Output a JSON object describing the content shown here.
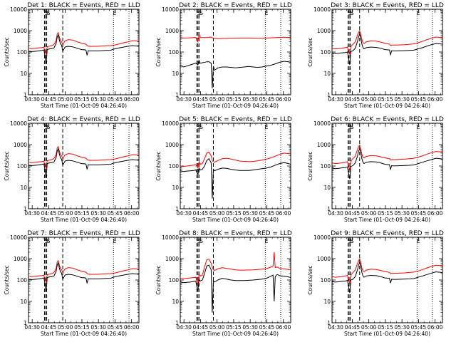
{
  "chart_data": {
    "type": "line",
    "x_tick_labels": [
      "04:30",
      "04:45",
      "05:00",
      "05:15",
      "05:30",
      "05:45",
      "06:00"
    ],
    "y_tick_labels": [
      "1",
      "10",
      "100",
      "1000",
      "10000"
    ],
    "ylim": [
      1,
      10000
    ],
    "y_scale": "log",
    "x_range_minutes": [
      0,
      100
    ],
    "xlabel": "Start Time (01-Oct-09 04:26:40)",
    "ylabel": "Counts/sec",
    "series_colors": {
      "events": "#000000",
      "lld": "#ff0000"
    },
    "panels": [
      {
        "title": "Det 1: BLACK = Events, RED = LLD",
        "markers": [
          "S",
          "S",
          "E"
        ],
        "marker_x": [
          16,
          18,
          78
        ],
        "dashed_x": [
          14.5,
          15.5,
          16.5,
          31
        ],
        "dotted_x": [
          77,
          91
        ],
        "x": [
          0,
          3,
          6,
          9,
          12,
          14,
          15,
          16,
          17,
          19,
          21,
          23,
          25,
          26,
          27,
          28,
          29,
          30,
          31,
          33,
          36,
          40,
          44,
          48,
          52,
          53,
          54,
          55,
          58,
          62,
          66,
          70,
          74,
          78,
          82,
          86,
          90,
          94,
          98,
          100
        ],
        "events": [
          110,
          105,
          108,
          112,
          118,
          125,
          60,
          30,
          130,
          140,
          145,
          155,
          250,
          500,
          620,
          350,
          240,
          210,
          110,
          170,
          185,
          175,
          150,
          130,
          125,
          70,
          115,
          112,
          112,
          112,
          115,
          118,
          120,
          140,
          155,
          170,
          185,
          200,
          190,
          185
        ],
        "lld": [
          150,
          145,
          148,
          155,
          160,
          170,
          100,
          80,
          175,
          190,
          200,
          220,
          350,
          700,
          800,
          480,
          350,
          300,
          220,
          330,
          380,
          360,
          300,
          260,
          230,
          200,
          190,
          185,
          185,
          185,
          190,
          195,
          200,
          210,
          240,
          270,
          300,
          340,
          330,
          320
        ]
      },
      {
        "title": "Det 2: BLACK = Events, RED = LLD",
        "markers": [
          "S",
          "S",
          "E"
        ],
        "marker_x": [
          17,
          19,
          78
        ],
        "dashed_x": [
          15,
          16,
          17,
          30
        ],
        "dotted_x": [
          77,
          91
        ],
        "x": [
          0,
          3,
          6,
          9,
          12,
          14,
          16,
          17,
          18,
          21,
          24,
          26,
          28,
          29,
          30,
          31,
          34,
          38,
          42,
          46,
          50,
          54,
          58,
          62,
          66,
          70,
          74,
          78,
          82,
          86,
          90,
          94,
          98,
          100
        ],
        "events": [
          25,
          20,
          22,
          25,
          28,
          30,
          25,
          40,
          30,
          32,
          35,
          35,
          30,
          2,
          22,
          14,
          18,
          20,
          20,
          19,
          18,
          19,
          20,
          21,
          20,
          19,
          20,
          22,
          24,
          28,
          33,
          37,
          35,
          33
        ],
        "lld": [
          460,
          450,
          455,
          460,
          470,
          480,
          300,
          700,
          480,
          470,
          480,
          490,
          500,
          460,
          440,
          420,
          420,
          430,
          440,
          440,
          440,
          450,
          450,
          450,
          445,
          440,
          440,
          450,
          460,
          470,
          480,
          490,
          480,
          470
        ]
      },
      {
        "title": "Det 3: BLACK = Events, RED = LLD",
        "markers": [
          "S",
          "S",
          "E"
        ],
        "marker_x": [
          16,
          18,
          78
        ],
        "dashed_x": [
          14.5,
          15.5,
          16.5,
          25
        ],
        "dotted_x": [
          77,
          91
        ],
        "x": [
          0,
          3,
          6,
          9,
          12,
          14,
          15,
          16,
          17,
          19,
          21,
          23,
          24,
          25,
          26,
          27,
          28,
          29,
          31,
          35,
          40,
          44,
          48,
          52,
          53,
          54,
          55,
          58,
          62,
          66,
          70,
          74,
          78,
          82,
          86,
          90,
          94,
          98,
          100
        ],
        "events": [
          90,
          85,
          88,
          92,
          95,
          100,
          50,
          25,
          105,
          115,
          150,
          300,
          500,
          700,
          450,
          240,
          160,
          140,
          160,
          170,
          165,
          150,
          130,
          125,
          75,
          115,
          112,
          112,
          114,
          116,
          118,
          122,
          140,
          160,
          190,
          220,
          250,
          240,
          230
        ],
        "lld": [
          150,
          140,
          145,
          150,
          160,
          170,
          100,
          80,
          180,
          230,
          300,
          600,
          800,
          1000,
          650,
          380,
          280,
          250,
          300,
          330,
          320,
          290,
          260,
          235,
          200,
          210,
          210,
          210,
          215,
          220,
          230,
          240,
          270,
          320,
          380,
          440,
          500,
          480,
          460
        ]
      },
      {
        "title": "Det 4: BLACK = Events, RED = LLD",
        "markers": [
          "S",
          "S",
          "E"
        ],
        "marker_x": [
          16,
          18,
          78
        ],
        "dashed_x": [
          14.5,
          15.5,
          16.5,
          31
        ],
        "dotted_x": [
          77,
          91
        ],
        "x": [
          0,
          3,
          6,
          9,
          12,
          14,
          15,
          16,
          17,
          19,
          21,
          23,
          25,
          26,
          27,
          28,
          29,
          30,
          31,
          33,
          36,
          40,
          44,
          48,
          52,
          53,
          54,
          55,
          58,
          62,
          66,
          70,
          74,
          78,
          82,
          86,
          90,
          94,
          98,
          100
        ],
        "events": [
          110,
          105,
          108,
          112,
          118,
          125,
          60,
          30,
          130,
          140,
          145,
          155,
          250,
          500,
          620,
          350,
          240,
          210,
          110,
          170,
          185,
          175,
          150,
          130,
          125,
          70,
          115,
          112,
          112,
          112,
          115,
          118,
          120,
          140,
          155,
          170,
          185,
          200,
          190,
          185
        ],
        "lld": [
          150,
          145,
          148,
          155,
          160,
          170,
          100,
          80,
          175,
          190,
          200,
          220,
          350,
          700,
          800,
          480,
          350,
          300,
          220,
          330,
          380,
          360,
          300,
          260,
          230,
          200,
          190,
          185,
          185,
          185,
          190,
          195,
          200,
          210,
          240,
          270,
          300,
          340,
          330,
          320
        ]
      },
      {
        "title": "Det 5: BLACK = Events, RED = LLD",
        "markers": [
          "S",
          "S",
          "E"
        ],
        "marker_x": [
          17,
          19,
          78
        ],
        "dashed_x": [
          15,
          16,
          17,
          30
        ],
        "dotted_x": [
          77,
          91
        ],
        "x": [
          0,
          3,
          6,
          9,
          12,
          14,
          16,
          17,
          18,
          20,
          22,
          24,
          26,
          28,
          29,
          30,
          31,
          34,
          38,
          42,
          46,
          50,
          54,
          58,
          62,
          66,
          70,
          74,
          78,
          82,
          86,
          90,
          94,
          98,
          100
        ],
        "events": [
          60,
          55,
          58,
          60,
          62,
          65,
          40,
          80,
          65,
          70,
          100,
          180,
          220,
          140,
          3,
          70,
          60,
          70,
          80,
          78,
          70,
          65,
          62,
          62,
          62,
          65,
          70,
          75,
          80,
          90,
          110,
          130,
          145,
          130,
          120
        ],
        "lld": [
          100,
          95,
          100,
          105,
          110,
          115,
          80,
          160,
          120,
          130,
          220,
          400,
          450,
          300,
          180,
          160,
          150,
          180,
          220,
          230,
          210,
          190,
          170,
          165,
          160,
          165,
          175,
          190,
          210,
          240,
          290,
          350,
          400,
          380,
          360
        ]
      },
      {
        "title": "Det 6: BLACK = Events, RED = LLD",
        "markers": [
          "S",
          "S",
          "E"
        ],
        "marker_x": [
          16,
          18,
          78
        ],
        "dashed_x": [
          14.5,
          15.5,
          16.5,
          25
        ],
        "dotted_x": [
          77,
          91
        ],
        "x": [
          0,
          3,
          6,
          9,
          12,
          14,
          15,
          16,
          17,
          19,
          21,
          23,
          24,
          25,
          26,
          27,
          28,
          29,
          31,
          35,
          40,
          44,
          48,
          52,
          53,
          54,
          55,
          58,
          62,
          66,
          70,
          74,
          78,
          82,
          86,
          90,
          94,
          98,
          100
        ],
        "events": [
          80,
          75,
          78,
          82,
          85,
          90,
          45,
          25,
          95,
          105,
          140,
          280,
          480,
          650,
          420,
          220,
          150,
          130,
          150,
          160,
          155,
          140,
          120,
          115,
          70,
          105,
          102,
          102,
          104,
          106,
          108,
          112,
          130,
          150,
          175,
          200,
          230,
          220,
          210
        ],
        "lld": [
          140,
          130,
          135,
          140,
          150,
          160,
          90,
          70,
          170,
          220,
          290,
          580,
          780,
          950,
          620,
          360,
          260,
          240,
          280,
          310,
          300,
          270,
          240,
          220,
          190,
          200,
          200,
          200,
          205,
          210,
          220,
          230,
          260,
          300,
          360,
          420,
          480,
          460,
          440
        ]
      },
      {
        "title": "Det 7: BLACK = Events, RED = LLD",
        "markers": [
          "S",
          "S",
          "E"
        ],
        "marker_x": [
          16,
          18,
          78
        ],
        "dashed_x": [
          14.5,
          15.5,
          16.5,
          31
        ],
        "dotted_x": [
          77,
          91
        ],
        "x": [
          0,
          3,
          6,
          9,
          12,
          14,
          15,
          16,
          17,
          19,
          21,
          23,
          25,
          26,
          27,
          28,
          29,
          30,
          31,
          33,
          36,
          40,
          44,
          48,
          52,
          53,
          54,
          55,
          58,
          62,
          66,
          70,
          74,
          78,
          82,
          86,
          90,
          94,
          98,
          100
        ],
        "events": [
          110,
          105,
          108,
          112,
          118,
          125,
          60,
          30,
          130,
          140,
          145,
          155,
          250,
          500,
          620,
          350,
          240,
          210,
          110,
          170,
          185,
          175,
          150,
          130,
          125,
          70,
          115,
          112,
          112,
          112,
          115,
          118,
          120,
          140,
          155,
          170,
          185,
          200,
          190,
          185
        ],
        "lld": [
          150,
          145,
          148,
          155,
          160,
          170,
          100,
          80,
          175,
          190,
          200,
          220,
          350,
          700,
          800,
          480,
          350,
          300,
          220,
          330,
          380,
          360,
          300,
          260,
          230,
          200,
          190,
          185,
          185,
          185,
          190,
          195,
          200,
          210,
          240,
          270,
          300,
          340,
          330,
          320
        ]
      },
      {
        "title": "Det 8: BLACK = Events, RED = LLD",
        "markers": [
          "S",
          "S",
          "E"
        ],
        "marker_x": [
          17,
          19,
          78
        ],
        "dashed_x": [
          15,
          16,
          17,
          30
        ],
        "dotted_x": [
          77,
          91
        ],
        "x": [
          0,
          3,
          6,
          9,
          12,
          14,
          16,
          17,
          18,
          20,
          22,
          24,
          26,
          28,
          29,
          30,
          31,
          34,
          38,
          42,
          46,
          50,
          54,
          58,
          62,
          66,
          70,
          74,
          78,
          82,
          84,
          85,
          86,
          87,
          88,
          90,
          94,
          98,
          100
        ],
        "events": [
          80,
          75,
          78,
          80,
          85,
          90,
          30,
          110,
          90,
          100,
          200,
          450,
          500,
          300,
          3,
          90,
          80,
          100,
          120,
          110,
          100,
          95,
          95,
          95,
          97,
          100,
          105,
          110,
          120,
          150,
          170,
          10,
          140,
          170,
          180,
          160,
          150,
          140,
          130
        ],
        "lld": [
          120,
          115,
          120,
          125,
          130,
          135,
          60,
          200,
          150,
          170,
          400,
          900,
          950,
          600,
          400,
          300,
          280,
          330,
          380,
          350,
          320,
          300,
          290,
          290,
          295,
          300,
          310,
          320,
          340,
          400,
          450,
          2000,
          380,
          400,
          400,
          350,
          330,
          310,
          300
        ]
      },
      {
        "title": "Det 9: BLACK = Events, RED = LLD",
        "markers": [
          "S",
          "S",
          "E"
        ],
        "marker_x": [
          16,
          18,
          78
        ],
        "dashed_x": [
          14.5,
          15.5,
          16.5,
          25
        ],
        "dotted_x": [
          77,
          91
        ],
        "x": [
          0,
          3,
          6,
          9,
          12,
          14,
          15,
          16,
          17,
          19,
          21,
          23,
          24,
          25,
          26,
          27,
          28,
          29,
          31,
          35,
          40,
          44,
          48,
          52,
          53,
          54,
          55,
          58,
          62,
          66,
          70,
          74,
          78,
          82,
          86,
          90,
          94,
          98,
          100
        ],
        "events": [
          85,
          80,
          83,
          87,
          90,
          95,
          48,
          25,
          100,
          110,
          145,
          290,
          490,
          680,
          440,
          230,
          155,
          135,
          155,
          165,
          160,
          145,
          125,
          120,
          72,
          110,
          107,
          107,
          109,
          111,
          113,
          117,
          135,
          155,
          180,
          210,
          240,
          230,
          220
        ],
        "lld": [
          145,
          135,
          140,
          145,
          155,
          165,
          95,
          75,
          175,
          225,
          295,
          590,
          790,
          980,
          640,
          370,
          270,
          245,
          290,
          320,
          310,
          280,
          250,
          228,
          195,
          205,
          205,
          205,
          210,
          215,
          225,
          235,
          265,
          310,
          370,
          430,
          490,
          470,
          450
        ]
      }
    ]
  }
}
